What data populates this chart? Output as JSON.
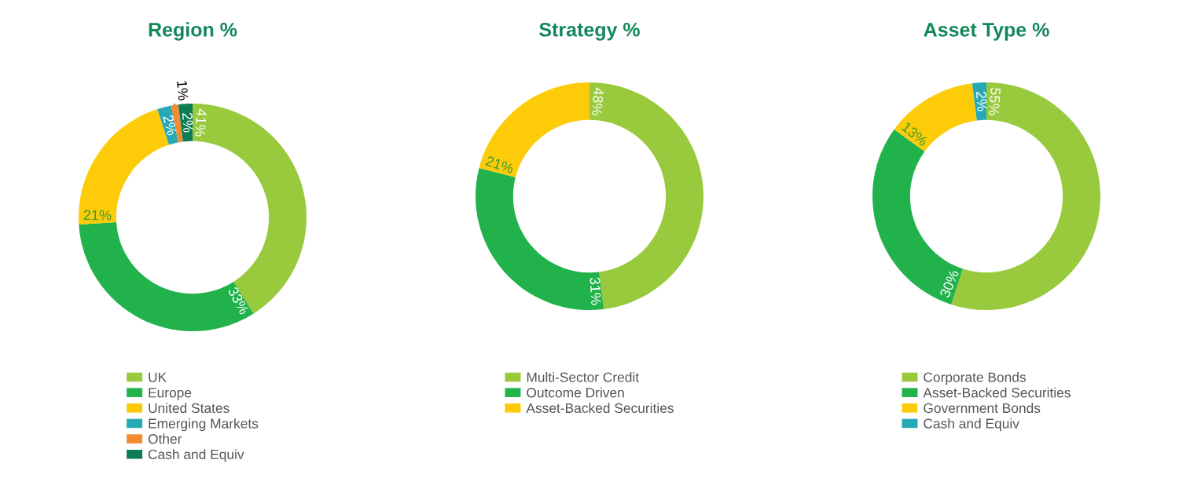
{
  "chart_data": [
    {
      "type": "donut",
      "title": "Region %",
      "categories": [
        "UK",
        "Europe",
        "United States",
        "Emerging Markets",
        "Other",
        "Cash and Equiv"
      ],
      "values": [
        41,
        33,
        21,
        2,
        1,
        2
      ],
      "value_labels": [
        "41%",
        "33%",
        "21%",
        "2%",
        "1%",
        "2%"
      ],
      "colors": [
        "#99c93c",
        "#22b24c",
        "#fecb09",
        "#27a9b5",
        "#f28c2e",
        "#0b7d55"
      ],
      "legend": "bottom"
    },
    {
      "type": "donut",
      "title": "Strategy %",
      "categories": [
        "Multi-Sector Credit",
        "Outcome Driven",
        "Asset-Backed Securities"
      ],
      "values": [
        48,
        31,
        21
      ],
      "value_labels": [
        "48%",
        "31%",
        "21%"
      ],
      "colors": [
        "#99c93c",
        "#22b24c",
        "#fecb09"
      ],
      "legend": "bottom"
    },
    {
      "type": "donut",
      "title": "Asset Type %",
      "categories": [
        "Corporate Bonds",
        "Asset-Backed Securities",
        "Government Bonds",
        "Cash and Equiv"
      ],
      "values": [
        55,
        30,
        13,
        2
      ],
      "value_labels": [
        "55%",
        "30%",
        "13%",
        "2%"
      ],
      "colors": [
        "#99c93c",
        "#22b24c",
        "#fecb09",
        "#27a9b5"
      ],
      "legend": "bottom"
    }
  ]
}
